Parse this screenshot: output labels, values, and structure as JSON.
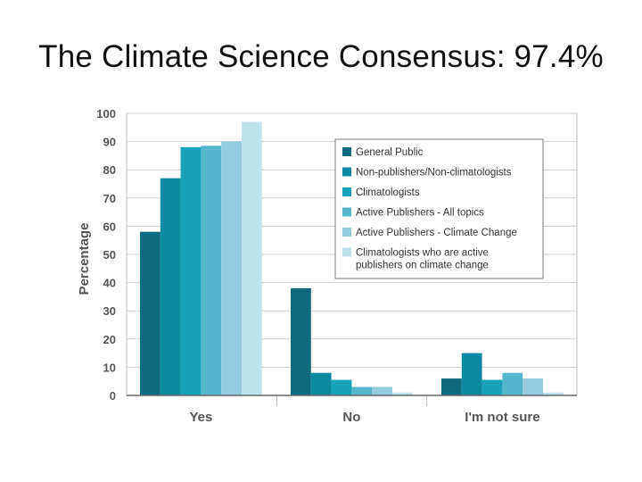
{
  "slide": {
    "title": "The Climate Science Consensus: 97.4%"
  },
  "chart_data": {
    "type": "bar",
    "title": "",
    "xlabel": "",
    "ylabel": "Percentage",
    "ylim": [
      0,
      100
    ],
    "yticks": [
      0,
      10,
      20,
      30,
      40,
      50,
      60,
      70,
      80,
      90,
      100
    ],
    "grid": true,
    "legend_position": "top-right",
    "categories": [
      "Yes",
      "No",
      "I'm not sure"
    ],
    "series": [
      {
        "name": "General Public",
        "color": "#0f6a80",
        "values": [
          58,
          38,
          6
        ]
      },
      {
        "name": "Non-publishers/Non-climatologists",
        "color": "#0e8aa0",
        "values": [
          77,
          8,
          15
        ]
      },
      {
        "name": "Climatologists",
        "color": "#17a1bb",
        "values": [
          88,
          5.5,
          5.5
        ]
      },
      {
        "name": "Active Publishers - All topics",
        "color": "#55b5cb",
        "values": [
          88.5,
          3,
          8
        ]
      },
      {
        "name": "Active Publishers - Climate Change",
        "color": "#92cbdc",
        "values": [
          90,
          3,
          6
        ]
      },
      {
        "name": "Climatologists who are active publishers on climate change",
        "legend_lines": [
          "Climatologists who are active",
          "publishers on climate change"
        ],
        "color": "#bfe1ea",
        "values": [
          97,
          1,
          1
        ]
      }
    ]
  }
}
